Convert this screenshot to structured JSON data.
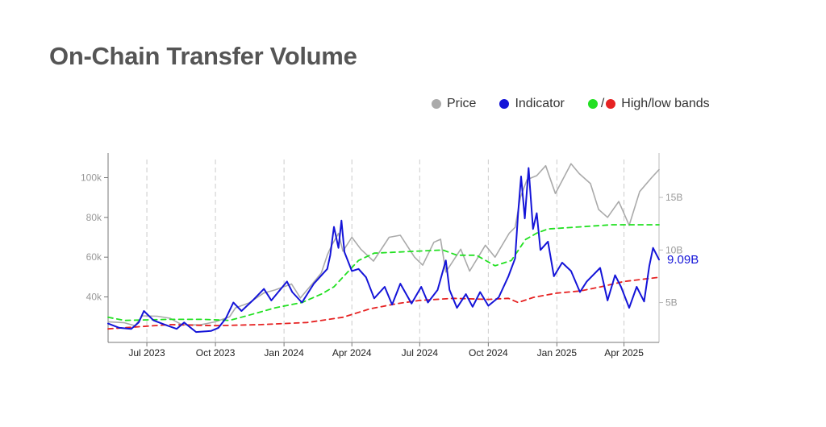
{
  "title": "On-Chain Transfer Volume",
  "legend": {
    "price_label": "Price",
    "indicator_label": "Indicator",
    "bands_label": "High/low bands",
    "slash": "/"
  },
  "colors": {
    "price": "#aaaaaa",
    "indicator": "#1414d8",
    "high_band": "#22e022",
    "low_band": "#e62222",
    "grid": "#cccccc"
  },
  "chart_data": {
    "type": "line",
    "title": "On-Chain Transfer Volume",
    "grid": "vertical dashed lines at x ticks",
    "legend_position": "top-right",
    "x_range": [
      "2023-05-10",
      "2025-05-18"
    ],
    "x_ticks": [
      {
        "date": "2023-07-01",
        "label": "Jul 2023"
      },
      {
        "date": "2023-10-01",
        "label": "Oct 2023"
      },
      {
        "date": "2024-01-01",
        "label": "Jan 2024"
      },
      {
        "date": "2024-04-01",
        "label": "Apr 2024"
      },
      {
        "date": "2024-07-01",
        "label": "Jul 2024"
      },
      {
        "date": "2024-10-01",
        "label": "Oct 2024"
      },
      {
        "date": "2025-01-01",
        "label": "Jan 2025"
      },
      {
        "date": "2025-04-01",
        "label": "Apr 2025"
      }
    ],
    "y_left": {
      "label": "",
      "range": [
        23000,
        110000
      ],
      "ticks": [
        {
          "v": 40000,
          "label": "40k"
        },
        {
          "v": 60000,
          "label": "60k"
        },
        {
          "v": 80000,
          "label": "80k"
        },
        {
          "v": 100000,
          "label": "100k"
        }
      ]
    },
    "y_right": {
      "label": "",
      "range": [
        1.7,
        18.1
      ],
      "unit": "B",
      "ticks": [
        {
          "v": 5,
          "label": "5B"
        },
        {
          "v": 10,
          "label": "10B"
        },
        {
          "v": 15,
          "label": "15B"
        }
      ]
    },
    "last_value_label": "9.09B",
    "series": [
      {
        "name": "Price",
        "axis": "left",
        "color": "#aaaaaa",
        "points": [
          [
            "2023-05-10",
            27500
          ],
          [
            "2023-06-01",
            27000
          ],
          [
            "2023-06-15",
            25500
          ],
          [
            "2023-06-25",
            30500
          ],
          [
            "2023-07-15",
            30300
          ],
          [
            "2023-08-01",
            29300
          ],
          [
            "2023-08-17",
            26000
          ],
          [
            "2023-09-10",
            25900
          ],
          [
            "2023-10-01",
            27500
          ],
          [
            "2023-10-20",
            30000
          ],
          [
            "2023-10-28",
            34500
          ],
          [
            "2023-11-15",
            37000
          ],
          [
            "2023-12-05",
            42000
          ],
          [
            "2023-12-20",
            43500
          ],
          [
            "2024-01-11",
            46500
          ],
          [
            "2024-01-23",
            39500
          ],
          [
            "2024-02-10",
            47500
          ],
          [
            "2024-02-20",
            52000
          ],
          [
            "2024-02-28",
            61000
          ],
          [
            "2024-03-05",
            66000
          ],
          [
            "2024-03-14",
            72000
          ],
          [
            "2024-03-20",
            63000
          ],
          [
            "2024-04-01",
            70000
          ],
          [
            "2024-04-13",
            64000
          ],
          [
            "2024-04-30",
            58000
          ],
          [
            "2024-05-21",
            70000
          ],
          [
            "2024-06-05",
            71000
          ],
          [
            "2024-06-24",
            60000
          ],
          [
            "2024-07-05",
            56000
          ],
          [
            "2024-07-20",
            67500
          ],
          [
            "2024-07-29",
            69000
          ],
          [
            "2024-08-05",
            52500
          ],
          [
            "2024-08-25",
            64000
          ],
          [
            "2024-09-06",
            53000
          ],
          [
            "2024-09-27",
            66000
          ],
          [
            "2024-10-10",
            60000
          ],
          [
            "2024-10-29",
            72000
          ],
          [
            "2024-11-06",
            75000
          ],
          [
            "2024-11-13",
            90000
          ],
          [
            "2024-11-22",
            99000
          ],
          [
            "2024-12-05",
            101000
          ],
          [
            "2024-12-17",
            106000
          ],
          [
            "2024-12-30",
            92000
          ],
          [
            "2025-01-20",
            107000
          ],
          [
            "2025-01-31",
            102000
          ],
          [
            "2025-02-15",
            97000
          ],
          [
            "2025-02-26",
            84000
          ],
          [
            "2025-03-10",
            80000
          ],
          [
            "2025-03-25",
            88000
          ],
          [
            "2025-04-08",
            76000
          ],
          [
            "2025-04-22",
            93000
          ],
          [
            "2025-05-08",
            100000
          ],
          [
            "2025-05-18",
            104000
          ]
        ]
      },
      {
        "name": "Indicator",
        "axis": "right",
        "color": "#1414d8",
        "points": [
          [
            "2023-05-10",
            3.0
          ],
          [
            "2023-05-25",
            2.6
          ],
          [
            "2023-06-10",
            2.5
          ],
          [
            "2023-06-20",
            3.1
          ],
          [
            "2023-06-27",
            4.2
          ],
          [
            "2023-07-10",
            3.3
          ],
          [
            "2023-07-25",
            2.9
          ],
          [
            "2023-08-10",
            2.5
          ],
          [
            "2023-08-20",
            3.1
          ],
          [
            "2023-09-05",
            2.2
          ],
          [
            "2023-09-25",
            2.3
          ],
          [
            "2023-10-05",
            2.6
          ],
          [
            "2023-10-15",
            3.5
          ],
          [
            "2023-10-25",
            5.0
          ],
          [
            "2023-11-05",
            4.2
          ],
          [
            "2023-11-20",
            5.2
          ],
          [
            "2023-12-05",
            6.3
          ],
          [
            "2023-12-15",
            5.2
          ],
          [
            "2024-01-05",
            7.0
          ],
          [
            "2024-01-12",
            6.0
          ],
          [
            "2024-01-25",
            5.0
          ],
          [
            "2024-02-10",
            6.8
          ],
          [
            "2024-02-28",
            8.2
          ],
          [
            "2024-03-03",
            9.5
          ],
          [
            "2024-03-08",
            12.2
          ],
          [
            "2024-03-14",
            10.2
          ],
          [
            "2024-03-18",
            12.8
          ],
          [
            "2024-03-22",
            9.8
          ],
          [
            "2024-04-01",
            8.0
          ],
          [
            "2024-04-10",
            8.2
          ],
          [
            "2024-04-20",
            7.4
          ],
          [
            "2024-05-01",
            5.4
          ],
          [
            "2024-05-15",
            6.5
          ],
          [
            "2024-05-25",
            4.8
          ],
          [
            "2024-06-05",
            6.8
          ],
          [
            "2024-06-20",
            4.9
          ],
          [
            "2024-07-03",
            6.5
          ],
          [
            "2024-07-12",
            5.0
          ],
          [
            "2024-07-25",
            6.2
          ],
          [
            "2024-08-05",
            9.0
          ],
          [
            "2024-08-10",
            6.2
          ],
          [
            "2024-08-20",
            4.5
          ],
          [
            "2024-09-01",
            5.8
          ],
          [
            "2024-09-10",
            4.6
          ],
          [
            "2024-09-20",
            6.0
          ],
          [
            "2024-10-01",
            4.7
          ],
          [
            "2024-10-15",
            5.5
          ],
          [
            "2024-10-28",
            7.5
          ],
          [
            "2024-11-06",
            9.2
          ],
          [
            "2024-11-10",
            13.5
          ],
          [
            "2024-11-14",
            17.0
          ],
          [
            "2024-11-19",
            13.0
          ],
          [
            "2024-11-24",
            17.8
          ],
          [
            "2024-11-30",
            12.0
          ],
          [
            "2024-12-05",
            13.5
          ],
          [
            "2024-12-10",
            10.0
          ],
          [
            "2024-12-20",
            10.8
          ],
          [
            "2024-12-28",
            7.5
          ],
          [
            "2025-01-08",
            8.8
          ],
          [
            "2025-01-20",
            8.0
          ],
          [
            "2025-02-01",
            6.0
          ],
          [
            "2025-02-10",
            7.0
          ],
          [
            "2025-02-28",
            8.3
          ],
          [
            "2025-03-10",
            5.2
          ],
          [
            "2025-03-20",
            7.6
          ],
          [
            "2025-03-28",
            6.5
          ],
          [
            "2025-04-08",
            4.5
          ],
          [
            "2025-04-18",
            6.5
          ],
          [
            "2025-04-28",
            5.1
          ],
          [
            "2025-05-05",
            8.5
          ],
          [
            "2025-05-10",
            10.2
          ],
          [
            "2025-05-18",
            9.09
          ]
        ]
      },
      {
        "name": "High band",
        "axis": "right",
        "color": "#22e022",
        "style": "dashed",
        "points": [
          [
            "2023-05-10",
            3.6
          ],
          [
            "2023-06-01",
            3.3
          ],
          [
            "2023-08-01",
            3.4
          ],
          [
            "2023-09-15",
            3.4
          ],
          [
            "2023-10-20",
            3.3
          ],
          [
            "2023-11-15",
            3.8
          ],
          [
            "2023-12-20",
            4.5
          ],
          [
            "2024-01-25",
            5.0
          ],
          [
            "2024-02-20",
            5.8
          ],
          [
            "2024-03-08",
            6.5
          ],
          [
            "2024-03-25",
            7.8
          ],
          [
            "2024-04-10",
            9.0
          ],
          [
            "2024-05-01",
            9.7
          ],
          [
            "2024-06-01",
            9.8
          ],
          [
            "2024-07-01",
            9.9
          ],
          [
            "2024-08-01",
            10.0
          ],
          [
            "2024-08-20",
            9.5
          ],
          [
            "2024-09-15",
            9.5
          ],
          [
            "2024-10-10",
            8.5
          ],
          [
            "2024-11-01",
            9.0
          ],
          [
            "2024-11-20",
            11.0
          ],
          [
            "2024-12-05",
            11.6
          ],
          [
            "2024-12-20",
            12.0
          ],
          [
            "2025-02-01",
            12.2
          ],
          [
            "2025-03-15",
            12.4
          ],
          [
            "2025-05-18",
            12.4
          ]
        ]
      },
      {
        "name": "Low band",
        "axis": "right",
        "color": "#e62222",
        "style": "dashed",
        "points": [
          [
            "2023-05-10",
            2.5
          ],
          [
            "2023-08-01",
            2.9
          ],
          [
            "2023-10-01",
            2.8
          ],
          [
            "2023-12-01",
            2.9
          ],
          [
            "2024-02-01",
            3.1
          ],
          [
            "2024-03-20",
            3.6
          ],
          [
            "2024-04-25",
            4.4
          ],
          [
            "2024-06-01",
            4.9
          ],
          [
            "2024-07-01",
            5.2
          ],
          [
            "2024-08-15",
            5.4
          ],
          [
            "2024-10-01",
            5.3
          ],
          [
            "2024-10-28",
            5.4
          ],
          [
            "2024-11-10",
            5.0
          ],
          [
            "2024-12-01",
            5.5
          ],
          [
            "2025-01-01",
            5.9
          ],
          [
            "2025-02-01",
            6.1
          ],
          [
            "2025-03-01",
            6.5
          ],
          [
            "2025-04-01",
            7.0
          ],
          [
            "2025-05-18",
            7.4
          ]
        ]
      }
    ]
  }
}
